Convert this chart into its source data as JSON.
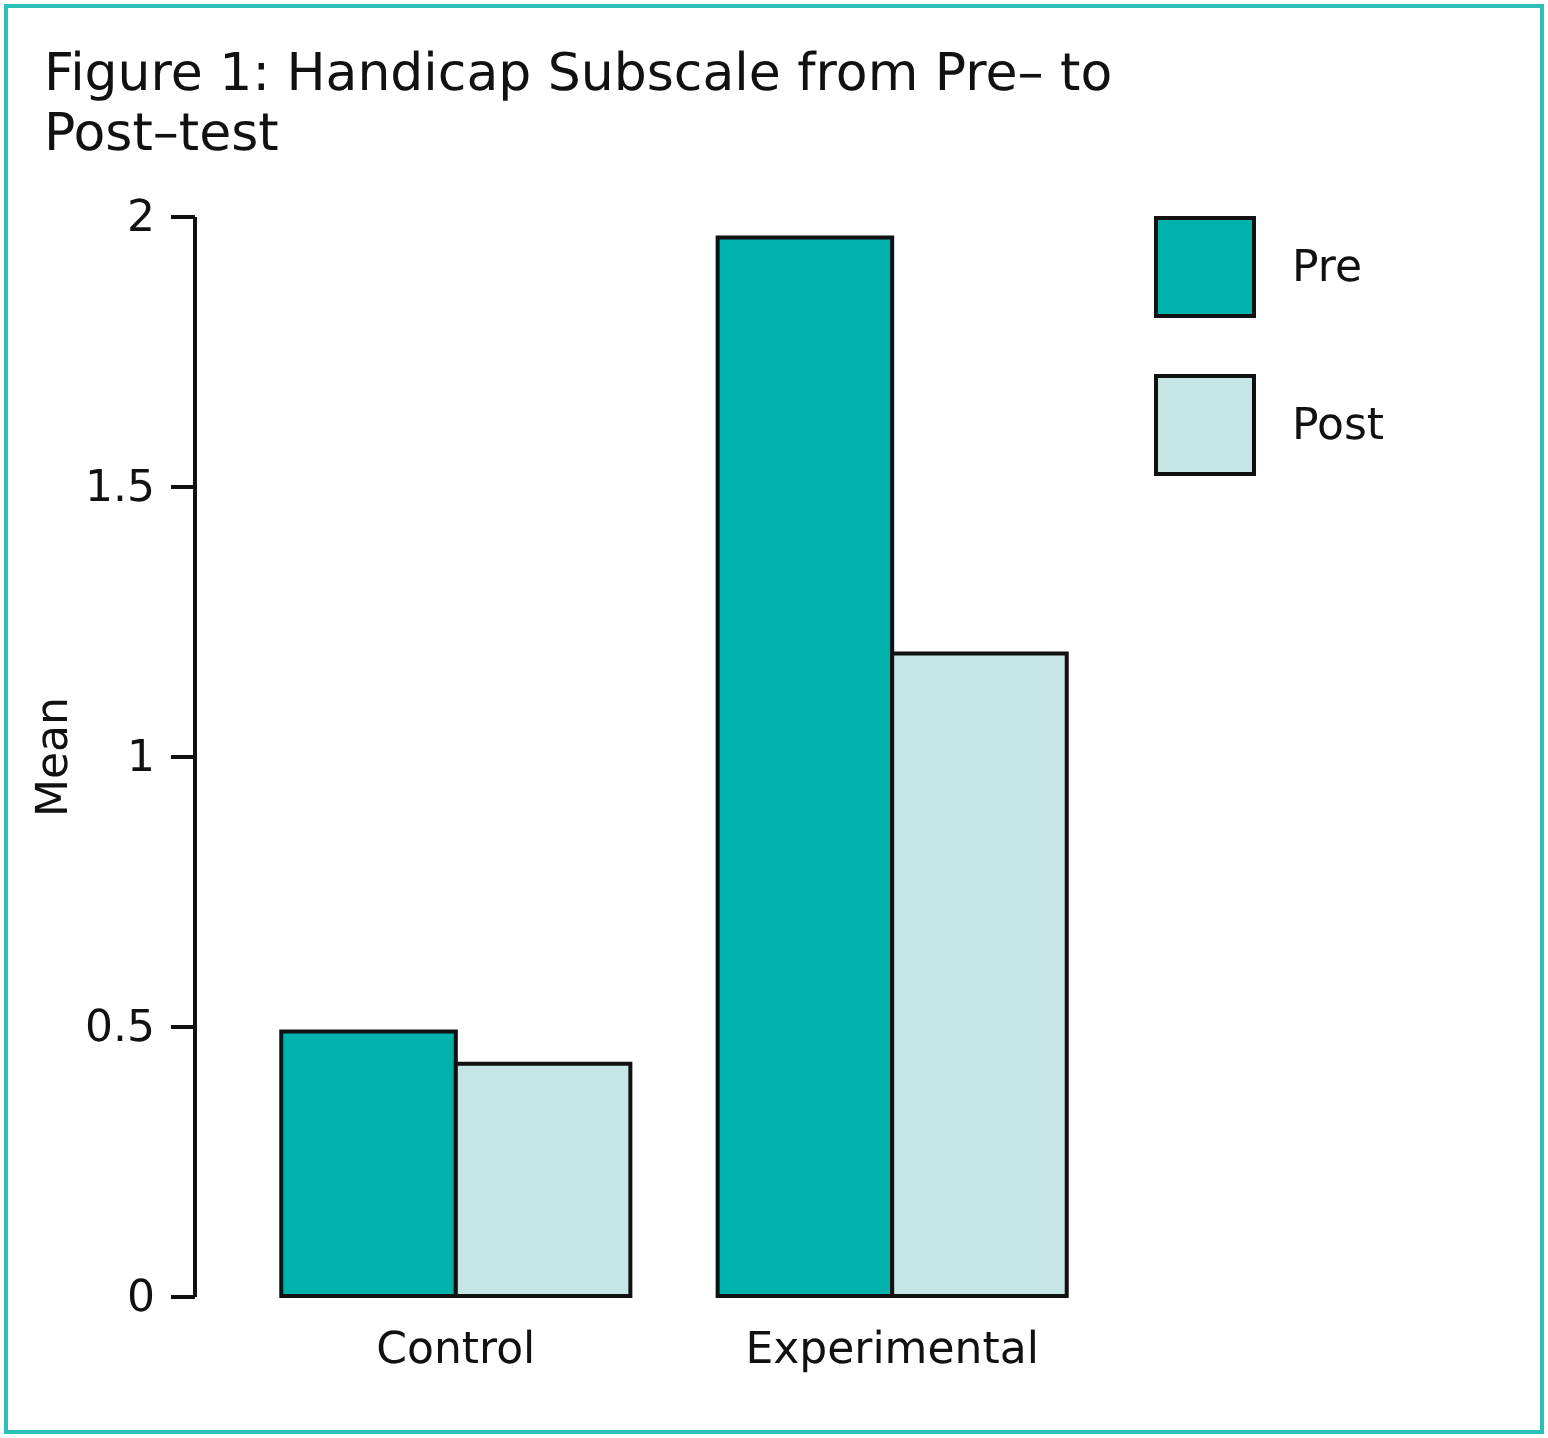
{
  "chart_data": {
    "type": "bar",
    "title": "Figure 1: Handicap Subscale from Pre– to Post–test",
    "ylabel": "Mean",
    "categories": [
      "Control",
      "Experimental"
    ],
    "series": [
      {
        "name": "Pre",
        "color": "#00b2ac",
        "values": [
          0.49,
          1.96
        ]
      },
      {
        "name": "Post",
        "color": "#c6e6e6",
        "values": [
          0.43,
          1.19
        ]
      }
    ],
    "ylim": [
      0,
      2
    ],
    "yticks": [
      0,
      0.5,
      1,
      1.5,
      2
    ],
    "legend": "top right"
  }
}
